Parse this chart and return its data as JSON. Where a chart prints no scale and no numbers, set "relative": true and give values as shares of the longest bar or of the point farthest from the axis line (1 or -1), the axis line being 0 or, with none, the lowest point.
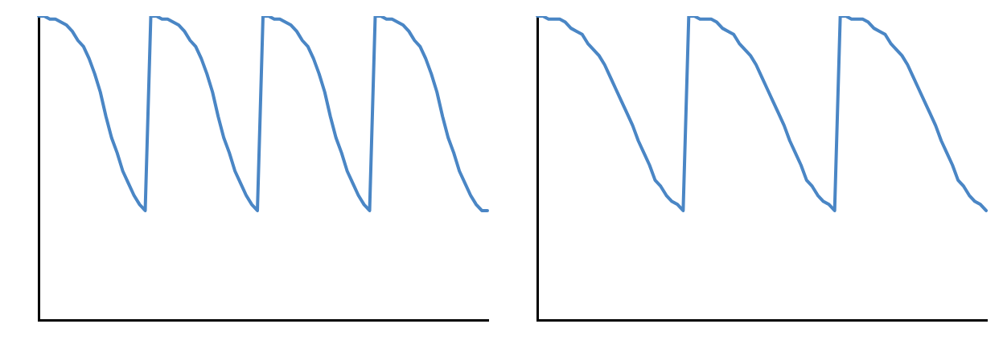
{
  "chart_data": [
    {
      "type": "line",
      "relative": true,
      "categories": [
        null,
        null,
        null,
        null,
        null,
        null,
        null,
        null,
        null,
        null,
        null,
        null,
        null,
        null,
        null,
        null,
        null,
        null,
        null,
        null,
        null,
        null,
        null,
        null,
        null,
        null,
        null,
        null,
        null,
        null,
        null,
        null,
        null,
        null,
        null,
        null,
        null,
        null,
        null,
        null,
        null,
        null,
        null,
        null,
        null,
        null,
        null,
        null,
        null,
        null,
        null,
        null,
        null,
        null,
        null,
        null,
        null,
        null,
        null,
        null,
        null,
        null,
        null,
        null,
        null,
        null,
        null,
        null,
        null,
        null,
        null,
        null,
        null,
        null,
        null,
        null,
        null,
        null,
        null,
        null,
        null
      ],
      "series": [
        {
          "color": "#4a86c5",
          "values": [
            1,
            1,
            0.99,
            0.99,
            0.98,
            0.97,
            0.95,
            0.92,
            0.9,
            0.86,
            0.81,
            0.75,
            0.67,
            0.6,
            0.55,
            0.49,
            0.45,
            0.41,
            0.38,
            0.36,
            1,
            1,
            0.99,
            0.99,
            0.98,
            0.97,
            0.95,
            0.92,
            0.9,
            0.86,
            0.81,
            0.75,
            0.67,
            0.6,
            0.55,
            0.49,
            0.45,
            0.41,
            0.38,
            0.36,
            1,
            1,
            0.99,
            0.99,
            0.98,
            0.97,
            0.95,
            0.92,
            0.9,
            0.86,
            0.81,
            0.75,
            0.67,
            0.6,
            0.55,
            0.49,
            0.45,
            0.41,
            0.38,
            0.36,
            1,
            1,
            0.99,
            0.99,
            0.98,
            0.97,
            0.95,
            0.92,
            0.9,
            0.86,
            0.81,
            0.75,
            0.67,
            0.6,
            0.55,
            0.49,
            0.45,
            0.41,
            0.38,
            0.36,
            0.36
          ]
        }
      ]
    },
    {
      "type": "line",
      "relative": true,
      "categories": [
        null,
        null,
        null,
        null,
        null,
        null,
        null,
        null,
        null,
        null,
        null,
        null,
        null,
        null,
        null,
        null,
        null,
        null,
        null,
        null,
        null,
        null,
        null,
        null,
        null,
        null,
        null,
        null,
        null,
        null,
        null,
        null,
        null,
        null,
        null,
        null,
        null,
        null,
        null,
        null,
        null,
        null,
        null,
        null,
        null,
        null,
        null,
        null,
        null,
        null,
        null,
        null,
        null,
        null,
        null,
        null,
        null,
        null,
        null,
        null,
        null,
        null,
        null,
        null,
        null,
        null,
        null,
        null,
        null,
        null,
        null,
        null,
        null,
        null,
        null,
        null,
        null,
        null,
        null,
        null,
        null
      ],
      "series": [
        {
          "color": "#4a86c5",
          "values": [
            1,
            1,
            0.99,
            0.99,
            0.99,
            0.98,
            0.96,
            0.95,
            0.94,
            0.91,
            0.89,
            0.87,
            0.84,
            0.8,
            0.76,
            0.72,
            0.68,
            0.64,
            0.59,
            0.55,
            0.51,
            0.46,
            0.44,
            0.41,
            0.39,
            0.38,
            0.36,
            1,
            1,
            0.99,
            0.99,
            0.99,
            0.98,
            0.96,
            0.95,
            0.94,
            0.91,
            0.89,
            0.87,
            0.84,
            0.8,
            0.76,
            0.72,
            0.68,
            0.64,
            0.59,
            0.55,
            0.51,
            0.46,
            0.44,
            0.41,
            0.39,
            0.38,
            0.36,
            1,
            1,
            0.99,
            0.99,
            0.99,
            0.98,
            0.96,
            0.95,
            0.94,
            0.91,
            0.89,
            0.87,
            0.84,
            0.8,
            0.76,
            0.72,
            0.68,
            0.64,
            0.59,
            0.55,
            0.51,
            0.46,
            0.44,
            0.41,
            0.39,
            0.38,
            0.36
          ]
        }
      ]
    }
  ]
}
